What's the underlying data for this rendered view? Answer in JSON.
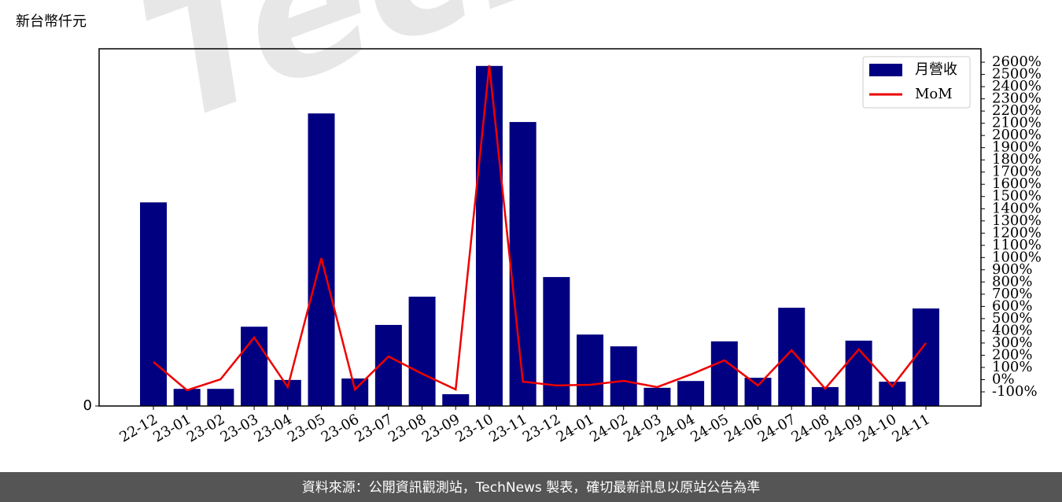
{
  "chart_data": {
    "type": "bar-line",
    "y_label": "新台幣仟元",
    "watermark": "TechNews",
    "footer": "資料來源：公開資訊觀測站，TechNews 製表，確切最新訊息以原站公告為準",
    "categories": [
      "22-12",
      "23-01",
      "23-02",
      "23-03",
      "23-04",
      "23-05",
      "23-06",
      "23-07",
      "23-08",
      "23-09",
      "23-10",
      "23-11",
      "23-12",
      "24-01",
      "24-02",
      "24-03",
      "24-04",
      "24-05",
      "24-06",
      "24-07",
      "24-08",
      "24-09",
      "24-10",
      "24-11"
    ],
    "series": [
      {
        "name": "月營收",
        "type": "bar",
        "color": "#000080",
        "values": [
          57.0,
          4.8,
          4.8,
          22.2,
          7.3,
          81.9,
          7.7,
          22.7,
          30.6,
          3.3,
          95.2,
          79.5,
          36.1,
          20.0,
          16.7,
          5.1,
          7.0,
          18.1,
          7.9,
          27.5,
          5.3,
          18.3,
          6.8,
          27.3
        ]
      },
      {
        "name": "MoM",
        "type": "line",
        "axis": "y2",
        "color": "#ee0000",
        "values": [
          145,
          -87,
          3,
          345,
          -61,
          995,
          -81,
          190,
          48,
          -81,
          2574,
          -16,
          -48,
          -42,
          -10,
          -61,
          42,
          158,
          -48,
          241,
          -74,
          248,
          -55,
          300
        ]
      }
    ],
    "ylim": [
      0,
      100
    ],
    "yticks": [
      0
    ],
    "y2lim": [
      -216,
      2710
    ],
    "y2ticks": [
      {
        "value": -100,
        "label": "-100%"
      },
      {
        "value": 0,
        "label": "0%"
      },
      {
        "value": 100,
        "label": "100%"
      },
      {
        "value": 200,
        "label": "200%"
      },
      {
        "value": 300,
        "label": "300%"
      },
      {
        "value": 400,
        "label": "400%"
      },
      {
        "value": 500,
        "label": "500%"
      },
      {
        "value": 600,
        "label": "600%"
      },
      {
        "value": 700,
        "label": "700%"
      },
      {
        "value": 800,
        "label": "800%"
      },
      {
        "value": 900,
        "label": "900%"
      },
      {
        "value": 1000,
        "label": "1000%"
      },
      {
        "value": 1100,
        "label": "1100%"
      },
      {
        "value": 1200,
        "label": "1200%"
      },
      {
        "value": 1300,
        "label": "1300%"
      },
      {
        "value": 1400,
        "label": "1400%"
      },
      {
        "value": 1500,
        "label": "1500%"
      },
      {
        "value": 1600,
        "label": "1600%"
      },
      {
        "value": 1700,
        "label": "1700%"
      },
      {
        "value": 1800,
        "label": "1800%"
      },
      {
        "value": 1900,
        "label": "1900%"
      },
      {
        "value": 2000,
        "label": "2000%"
      },
      {
        "value": 2100,
        "label": "2100%"
      },
      {
        "value": 2200,
        "label": "2200%"
      },
      {
        "value": 2300,
        "label": "2300%"
      },
      {
        "value": 2400,
        "label": "2400%"
      },
      {
        "value": 2500,
        "label": "2500%"
      },
      {
        "value": 2600,
        "label": "2600%"
      }
    ],
    "legend": "upper right"
  }
}
